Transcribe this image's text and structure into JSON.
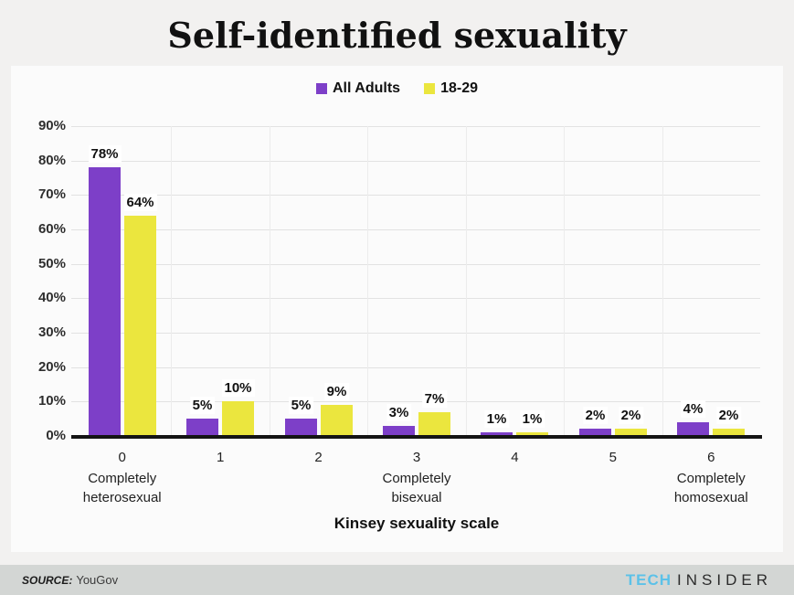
{
  "title": "Self-identified sexuality",
  "colors": {
    "all_adults": "#7d3fc8",
    "age_18_29": "#ebe63e",
    "axis": "#141414",
    "grid_h": "#e2e2e2",
    "grid_v": "#ececec",
    "footer_bg": "#d3d6d4",
    "brand_tech": "#5bc1e8",
    "brand_insider": "#2b2b2b"
  },
  "legend": {
    "items": [
      {
        "label": "All Adults",
        "color": "#7d3fc8"
      },
      {
        "label": "18-29",
        "color": "#ebe63e"
      }
    ]
  },
  "chart_data": {
    "type": "bar",
    "categories": [
      "0",
      "1",
      "2",
      "3",
      "4",
      "5",
      "6"
    ],
    "category_sublabels": [
      "Completely heterosexual",
      "",
      "",
      "Completely bisexual",
      "",
      "",
      "Completely homosexual"
    ],
    "series": [
      {
        "name": "All Adults",
        "color": "#7d3fc8",
        "values": [
          78,
          5,
          5,
          3,
          1,
          2,
          4
        ]
      },
      {
        "name": "18-29",
        "color": "#ebe63e",
        "values": [
          64,
          10,
          9,
          7,
          1,
          2,
          2
        ]
      }
    ],
    "data_labels": [
      [
        "78%",
        "5%",
        "5%",
        "3%",
        "1%",
        "2%",
        "4%"
      ],
      [
        "64%",
        "10%",
        "9%",
        "7%",
        "1%",
        "2%",
        "2%"
      ]
    ],
    "title": "Self-identified sexuality",
    "xlabel": "Kinsey sexuality scale",
    "ylabel": "",
    "y_ticks": [
      "0%",
      "10%",
      "20%",
      "30%",
      "40%",
      "50%",
      "60%",
      "70%",
      "80%",
      "90%"
    ],
    "ylim": [
      0,
      90
    ],
    "grid": true,
    "legend_position": "top"
  },
  "footer": {
    "source_label": "SOURCE:",
    "source_value": "YouGov",
    "brand_tech": "TECH",
    "brand_insider": "INSIDER"
  }
}
